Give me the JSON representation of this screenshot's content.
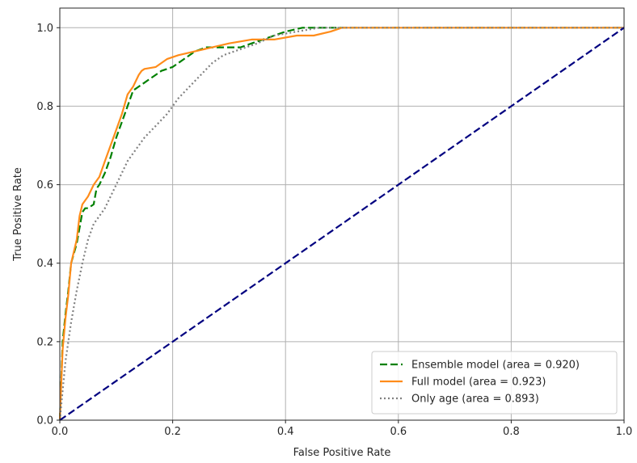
{
  "chart_data": {
    "type": "line",
    "title": "",
    "xlabel": "False Positive Rate",
    "ylabel": "True Positive Rate",
    "xlim": [
      0.0,
      1.0
    ],
    "ylim": [
      0.0,
      1.05
    ],
    "xticks": [
      "0.0",
      "0.2",
      "0.4",
      "0.6",
      "0.8",
      "1.0"
    ],
    "yticks": [
      "0.0",
      "0.2",
      "0.4",
      "0.6",
      "0.8",
      "1.0"
    ],
    "grid": true,
    "legend_position": "lower-right",
    "series": [
      {
        "name": "Ensemble model (area = 0.920)",
        "color": "#008000",
        "style": "dashed",
        "x": [
          0.0,
          0.005,
          0.01,
          0.015,
          0.02,
          0.03,
          0.035,
          0.04,
          0.045,
          0.05,
          0.06,
          0.065,
          0.07,
          0.08,
          0.09,
          0.1,
          0.11,
          0.12,
          0.13,
          0.14,
          0.15,
          0.16,
          0.17,
          0.18,
          0.2,
          0.21,
          0.22,
          0.24,
          0.26,
          0.28,
          0.3,
          0.32,
          0.34,
          0.36,
          0.38,
          0.4,
          0.43,
          0.45,
          0.48,
          0.5,
          1.0
        ],
        "y": [
          0.0,
          0.2,
          0.27,
          0.33,
          0.4,
          0.45,
          0.49,
          0.53,
          0.54,
          0.54,
          0.55,
          0.59,
          0.6,
          0.63,
          0.67,
          0.72,
          0.76,
          0.8,
          0.84,
          0.85,
          0.86,
          0.87,
          0.88,
          0.89,
          0.9,
          0.91,
          0.92,
          0.94,
          0.95,
          0.95,
          0.95,
          0.95,
          0.96,
          0.97,
          0.98,
          0.99,
          1.0,
          1.0,
          1.0,
          1.0,
          1.0
        ]
      },
      {
        "name": "Full model (area = 0.923)",
        "color": "#ff8c1a",
        "style": "solid",
        "x": [
          0.0,
          0.005,
          0.01,
          0.015,
          0.02,
          0.03,
          0.035,
          0.04,
          0.05,
          0.06,
          0.07,
          0.08,
          0.09,
          0.1,
          0.11,
          0.12,
          0.13,
          0.14,
          0.145,
          0.15,
          0.17,
          0.19,
          0.21,
          0.24,
          0.27,
          0.3,
          0.34,
          0.38,
          0.42,
          0.45,
          0.48,
          0.5,
          1.0
        ],
        "y": [
          0.0,
          0.18,
          0.26,
          0.32,
          0.4,
          0.46,
          0.52,
          0.55,
          0.57,
          0.6,
          0.62,
          0.66,
          0.7,
          0.74,
          0.78,
          0.83,
          0.85,
          0.88,
          0.89,
          0.895,
          0.9,
          0.92,
          0.93,
          0.94,
          0.95,
          0.96,
          0.97,
          0.97,
          0.98,
          0.98,
          0.99,
          1.0,
          1.0
        ]
      },
      {
        "name": "Only age (area = 0.893)",
        "color": "#808080",
        "style": "dotted",
        "x": [
          0.0,
          0.01,
          0.02,
          0.03,
          0.04,
          0.05,
          0.06,
          0.07,
          0.08,
          0.09,
          0.1,
          0.11,
          0.12,
          0.13,
          0.14,
          0.15,
          0.17,
          0.19,
          0.21,
          0.23,
          0.25,
          0.27,
          0.29,
          0.31,
          0.33,
          0.35,
          0.38,
          0.42,
          0.46,
          0.5,
          1.0
        ],
        "y": [
          0.0,
          0.15,
          0.25,
          0.33,
          0.4,
          0.46,
          0.5,
          0.52,
          0.54,
          0.57,
          0.6,
          0.63,
          0.66,
          0.68,
          0.7,
          0.72,
          0.75,
          0.78,
          0.82,
          0.85,
          0.88,
          0.91,
          0.93,
          0.94,
          0.95,
          0.96,
          0.98,
          0.99,
          1.0,
          1.0,
          1.0
        ]
      },
      {
        "name": "",
        "color": "#000080",
        "style": "dashed",
        "x": [
          0.0,
          1.0
        ],
        "y": [
          0.0,
          1.0
        ]
      }
    ]
  }
}
